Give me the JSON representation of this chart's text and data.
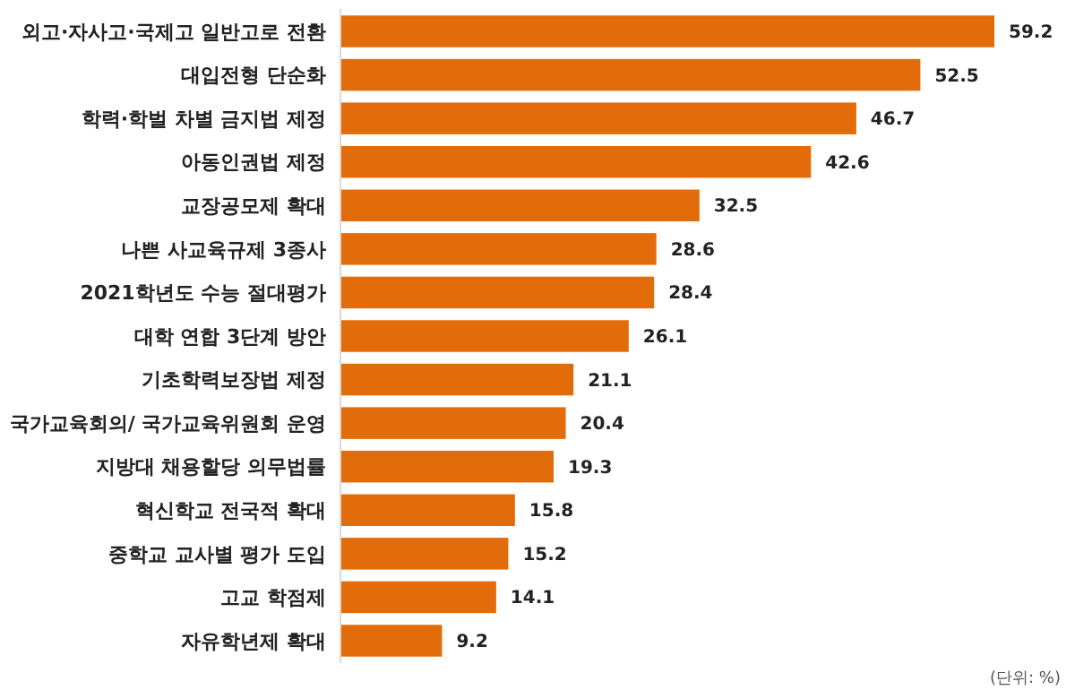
{
  "chart_data": {
    "type": "bar",
    "orientation": "horizontal",
    "categories": [
      "외고·자사고·국제고 일반고로 전환",
      "대입전형 단순화",
      "학력·학벌 차별 금지법 제정",
      "아동인권법 제정",
      "교장공모제 확대",
      "나쁜 사교육규제 3종사",
      "2021학년도 수능 절대평가",
      "대학 연합 3단계 방안",
      "기초학력보장법 제정",
      "국가교육회의/ 국가교육위원회 운영",
      "지방대 채용할당 의무법률",
      "혁신학교 전국적 확대",
      "중학교 교사별 평가 도입",
      "고교 학점제",
      "자유학년제 확대"
    ],
    "values": [
      59.2,
      52.5,
      46.7,
      42.6,
      32.5,
      28.6,
      28.4,
      26.1,
      21.1,
      20.4,
      19.3,
      15.8,
      15.2,
      14.1,
      9.2
    ],
    "color": "#e36c0a",
    "data_labels": true,
    "tick_labels": "y",
    "annotations": [
      "(단위: %)"
    ]
  }
}
